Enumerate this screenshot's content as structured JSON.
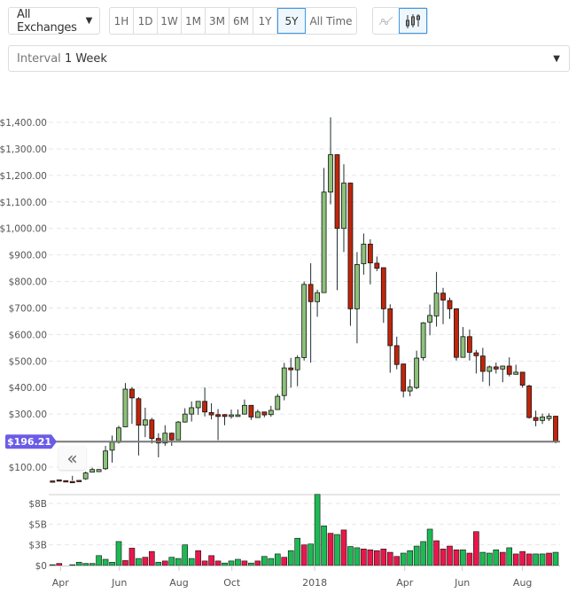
{
  "toolbar": {
    "exchange": "All Exchanges",
    "ranges": [
      "1H",
      "1D",
      "1W",
      "1M",
      "3M",
      "6M",
      "1Y",
      "5Y",
      "All Time"
    ],
    "active_range": "5Y",
    "chart_types": [
      "line-chart-icon",
      "candlestick-icon"
    ],
    "active_chart_type": "candlestick-icon"
  },
  "interval": {
    "label": "Interval",
    "value": "1 Week"
  },
  "colors": {
    "up": "#8dc17a",
    "down": "#c0250b",
    "vol_up": "#1db954",
    "vol_down": "#e8174a",
    "price_badge": "#6b5ce7"
  },
  "chart_data": {
    "type": "candlestick",
    "current_price": 196.21,
    "current_price_label": "$196.21",
    "ylim": [
      0,
      1400
    ],
    "y_ticks": [
      {
        "v": 100,
        "label": "$100.00"
      },
      {
        "v": 300,
        "label": "$300.00"
      },
      {
        "v": 400,
        "label": "$400.00"
      },
      {
        "v": 500,
        "label": "$500.00"
      },
      {
        "v": 600,
        "label": "$600.00"
      },
      {
        "v": 700,
        "label": "$700.00"
      },
      {
        "v": 800,
        "label": "$800.00"
      },
      {
        "v": 900,
        "label": "$900.00"
      },
      {
        "v": 1000,
        "label": "$1,000.00"
      },
      {
        "v": 1100,
        "label": "$1,100.00"
      },
      {
        "v": 1200,
        "label": "$1,200.00"
      },
      {
        "v": 1300,
        "label": "$1,300.00"
      },
      {
        "v": 1400,
        "label": "$1,400.00"
      }
    ],
    "x_ticks": [
      {
        "week": 1.2,
        "label": "Apr"
      },
      {
        "week": 10.1,
        "label": "Jun"
      },
      {
        "week": 19.1,
        "label": "Aug"
      },
      {
        "week": 27.1,
        "label": "Oct"
      },
      {
        "week": 39.6,
        "label": "2018"
      },
      {
        "week": 53.2,
        "label": "Apr"
      },
      {
        "week": 61.9,
        "label": "Jun"
      },
      {
        "week": 71,
        "label": "Aug"
      }
    ],
    "ohlc": [
      [
        48,
        52,
        52,
        47
      ],
      [
        52,
        52,
        53,
        50
      ],
      [
        49,
        49,
        50,
        45
      ],
      [
        46,
        67,
        50,
        45
      ],
      [
        50,
        52,
        52,
        49
      ],
      [
        56,
        83,
        52,
        78
      ],
      [
        81,
        98,
        80,
        91
      ],
      [
        83,
        92,
        82,
        91
      ],
      [
        94,
        180,
        89,
        161
      ],
      [
        164,
        219,
        117,
        194
      ],
      [
        194,
        256,
        189,
        248
      ],
      [
        252,
        417,
        250,
        394
      ],
      [
        394,
        402,
        263,
        361
      ],
      [
        358,
        364,
        144,
        258
      ],
      [
        258,
        324,
        213,
        278
      ],
      [
        278,
        286,
        189,
        208
      ],
      [
        208,
        228,
        137,
        191
      ],
      [
        191,
        258,
        180,
        228
      ],
      [
        228,
        230,
        180,
        203
      ],
      [
        203,
        274,
        202,
        270
      ],
      [
        270,
        322,
        268,
        300
      ],
      [
        300,
        348,
        272,
        324
      ],
      [
        324,
        349,
        297,
        348
      ],
      [
        348,
        400,
        291,
        308
      ],
      [
        306,
        341,
        280,
        297
      ],
      [
        298,
        319,
        202,
        291
      ],
      [
        298,
        300,
        258,
        291
      ],
      [
        291,
        317,
        283,
        297
      ],
      [
        291,
        317,
        290,
        297
      ],
      [
        300,
        355,
        298,
        333
      ],
      [
        333,
        334,
        278,
        289
      ],
      [
        287,
        317,
        286,
        308
      ],
      [
        308,
        309,
        288,
        297
      ],
      [
        298,
        331,
        290,
        314
      ],
      [
        317,
        376,
        316,
        367
      ],
      [
        370,
        493,
        352,
        474
      ],
      [
        474,
        512,
        400,
        467
      ],
      [
        467,
        522,
        405,
        513
      ],
      [
        513,
        800,
        502,
        789
      ],
      [
        789,
        869,
        494,
        724
      ],
      [
        724,
        769,
        667,
        758
      ],
      [
        758,
        1228,
        757,
        1137
      ],
      [
        1137,
        1419,
        1091,
        1278
      ],
      [
        1278,
        1280,
        767,
        1000
      ],
      [
        1000,
        1242,
        911,
        1171
      ],
      [
        1171,
        1173,
        633,
        697
      ],
      [
        697,
        911,
        567,
        864
      ],
      [
        867,
        981,
        826,
        941
      ],
      [
        941,
        959,
        789,
        870
      ],
      [
        869,
        894,
        839,
        850
      ],
      [
        852,
        853,
        644,
        697
      ],
      [
        697,
        714,
        456,
        558
      ],
      [
        558,
        592,
        469,
        487
      ],
      [
        489,
        490,
        363,
        387
      ],
      [
        387,
        431,
        367,
        402
      ],
      [
        400,
        539,
        394,
        511
      ],
      [
        513,
        647,
        502,
        644
      ],
      [
        647,
        713,
        597,
        672
      ],
      [
        670,
        836,
        630,
        756
      ],
      [
        756,
        776,
        639,
        730
      ],
      [
        728,
        739,
        659,
        697
      ],
      [
        697,
        698,
        502,
        514
      ],
      [
        514,
        628,
        513,
        592
      ],
      [
        592,
        619,
        502,
        533
      ],
      [
        531,
        542,
        453,
        520
      ],
      [
        519,
        550,
        422,
        461
      ],
      [
        461,
        483,
        406,
        478
      ],
      [
        478,
        494,
        453,
        470
      ],
      [
        470,
        483,
        420,
        481
      ],
      [
        481,
        514,
        442,
        450
      ],
      [
        450,
        486,
        449,
        458
      ],
      [
        458,
        459,
        400,
        409
      ],
      [
        406,
        411,
        283,
        287
      ],
      [
        287,
        313,
        254,
        276
      ],
      [
        276,
        302,
        263,
        289
      ],
      [
        283,
        303,
        274,
        292
      ],
      [
        292,
        293,
        190,
        196.21
      ]
    ],
    "volume": {
      "unit": "B USD",
      "ticks": [
        {
          "v": 0,
          "label": "$0"
        },
        {
          "v": 2.5,
          "label": "$3B"
        },
        {
          "v": 5,
          "label": "$5B"
        },
        {
          "v": 7.5,
          "label": "$8B"
        }
      ],
      "ylim": [
        0,
        8.6
      ],
      "values": [
        0.1,
        0.25,
        0,
        0.1,
        0.4,
        0.25,
        0.25,
        1.2,
        0.75,
        0.4,
        2.9,
        0.6,
        2.1,
        0.85,
        1.0,
        1.7,
        0.4,
        0.55,
        1.0,
        0.85,
        2.5,
        0.85,
        1.8,
        0.55,
        1.2,
        0.55,
        0.3,
        0.55,
        0.75,
        0.55,
        0.3,
        0.55,
        1.1,
        0.85,
        1.4,
        1.0,
        1.8,
        3.3,
        2.5,
        2.6,
        8.6,
        4.8,
        3.9,
        3.75,
        4.3,
        2.3,
        2.15,
        2.0,
        1.9,
        1.8,
        2.0,
        1.6,
        1.1,
        1.5,
        1.8,
        2.35,
        2.9,
        4.4,
        3.0,
        2.0,
        2.35,
        1.9,
        1.9,
        1.5,
        4.1,
        1.6,
        1.5,
        1.9,
        1.6,
        2.15,
        1.4,
        1.7,
        1.4,
        1.4,
        1.4,
        1.5,
        1.6
      ],
      "direction": [
        "u",
        "d",
        "u",
        "u",
        "u",
        "u",
        "u",
        "u",
        "u",
        "u",
        "u",
        "d",
        "d",
        "u",
        "d",
        "d",
        "u",
        "d",
        "u",
        "u",
        "u",
        "u",
        "d",
        "d",
        "d",
        "d",
        "u",
        "u",
        "u",
        "d",
        "u",
        "d",
        "u",
        "u",
        "u",
        "d",
        "u",
        "u",
        "d",
        "u",
        "u",
        "u",
        "d",
        "u",
        "d",
        "u",
        "u",
        "d",
        "d",
        "d",
        "d",
        "d",
        "d",
        "u",
        "u",
        "u",
        "u",
        "u",
        "d",
        "d",
        "d",
        "d",
        "u",
        "d",
        "d",
        "u",
        "u",
        "u",
        "d",
        "u",
        "d",
        "d",
        "d",
        "u",
        "u",
        "d",
        "u"
      ]
    }
  }
}
